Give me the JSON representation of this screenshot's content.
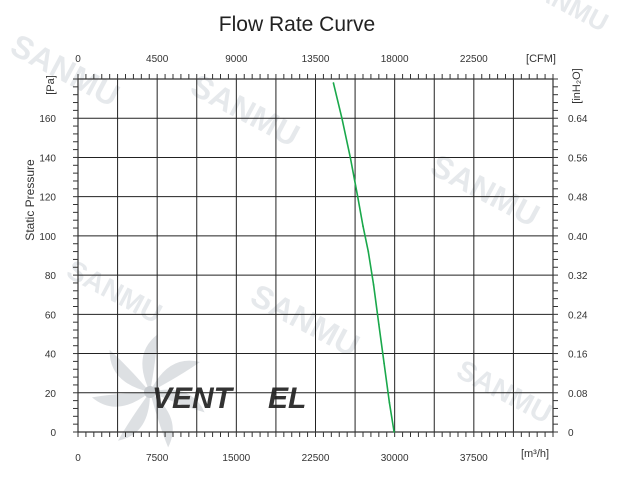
{
  "colors": {
    "curve": "#1aa84b",
    "grid": "#222222",
    "frame": "#333333",
    "watermark": "#e6e9ec",
    "logo_dark": "#d2d6da",
    "logo_accent": "#bcd3ea"
  },
  "watermark": {
    "text": "SANMU",
    "logo_text_main": "VENT",
    "logo_text_accent": "EL"
  },
  "chart_data": {
    "type": "line",
    "title": "Flow Rate Curve",
    "ylabel": "Static Pressure",
    "y_unit": "[Pa]",
    "y_ticks": [
      0,
      20,
      40,
      60,
      80,
      100,
      120,
      140,
      160
    ],
    "ylim": [
      0,
      180
    ],
    "x_unit": "[m³/h]",
    "x_ticks": [
      0,
      7500,
      15000,
      22500,
      30000,
      37500
    ],
    "x_tick_labels": [
      "0",
      "7500",
      "15000",
      "22500",
      "30000",
      "37500"
    ],
    "xlim": [
      0,
      45000
    ],
    "x2_unit": "[CFM]",
    "x2_tick_labels": [
      "0",
      "4500",
      "9000",
      "13500",
      "18000",
      "22500"
    ],
    "y2_unit": "[inH₂O]",
    "y2_tick_labels": [
      "0",
      "0.08",
      "0.16",
      "0.24",
      "0.32",
      "0.40",
      "0.48",
      "0.56",
      "0.64"
    ],
    "grid": true,
    "series": [
      {
        "x": [
          24200,
          25000,
          25800,
          26500,
          27000,
          27500,
          28000,
          28500,
          29000,
          29500,
          29950
        ],
        "y": [
          178,
          160,
          140,
          120,
          105,
          92,
          75,
          55,
          35,
          15,
          0
        ]
      }
    ]
  }
}
